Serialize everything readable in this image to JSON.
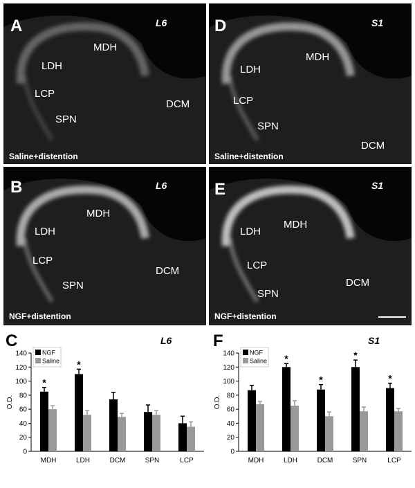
{
  "panels": [
    {
      "letter": "A",
      "section": "L6",
      "condition": "Saline+distention",
      "regions": [
        "MDH",
        "LDH",
        "LCP",
        "SPN",
        "DCM"
      ]
    },
    {
      "letter": "D",
      "section": "S1",
      "condition": "Saline+distention",
      "regions": [
        "MDH",
        "LDH",
        "LCP",
        "SPN",
        "DCM"
      ]
    },
    {
      "letter": "B",
      "section": "L6",
      "condition": "NGF+distention",
      "regions": [
        "MDH",
        "LDH",
        "LCP",
        "SPN",
        "DCM"
      ]
    },
    {
      "letter": "E",
      "section": "S1",
      "condition": "NGF+distention",
      "regions": [
        "MDH",
        "LDH",
        "LCP",
        "SPN",
        "DCM"
      ]
    }
  ],
  "chart_data": [
    {
      "type": "bar",
      "panel": "C",
      "title": "L6",
      "y_label": "O.D.",
      "categories": [
        "MDH",
        "LDH",
        "DCM",
        "SPN",
        "LCP"
      ],
      "series": [
        {
          "name": "NGF",
          "color": "#000000",
          "values": [
            85,
            110,
            74,
            56,
            40
          ],
          "errors": [
            6,
            7,
            10,
            10,
            10
          ],
          "significance": [
            "*",
            "*",
            null,
            null,
            null
          ]
        },
        {
          "name": "Saline",
          "color": "#999999",
          "values": [
            60,
            52,
            49,
            52,
            35
          ],
          "errors": [
            5,
            6,
            5,
            6,
            7
          ]
        }
      ],
      "ylim": [
        0,
        140
      ],
      "yticks": [
        0,
        20,
        40,
        60,
        80,
        100,
        120,
        140
      ],
      "legend": "top-left"
    },
    {
      "type": "bar",
      "panel": "F",
      "title": "S1",
      "y_label": "O.D.",
      "categories": [
        "MDH",
        "LDH",
        "DCM",
        "SPN",
        "LCP"
      ],
      "series": [
        {
          "name": "NGF",
          "color": "#000000",
          "values": [
            87,
            120,
            88,
            120,
            90
          ],
          "errors": [
            7,
            5,
            7,
            10,
            7
          ],
          "significance": [
            null,
            "*",
            "*",
            "*",
            "*"
          ]
        },
        {
          "name": "Saline",
          "color": "#999999",
          "values": [
            67,
            65,
            50,
            57,
            57
          ],
          "errors": [
            4,
            7,
            6,
            6,
            4
          ]
        }
      ],
      "ylim": [
        0,
        140
      ],
      "yticks": [
        0,
        20,
        40,
        60,
        80,
        100,
        120,
        140
      ],
      "legend": "top-left"
    }
  ]
}
